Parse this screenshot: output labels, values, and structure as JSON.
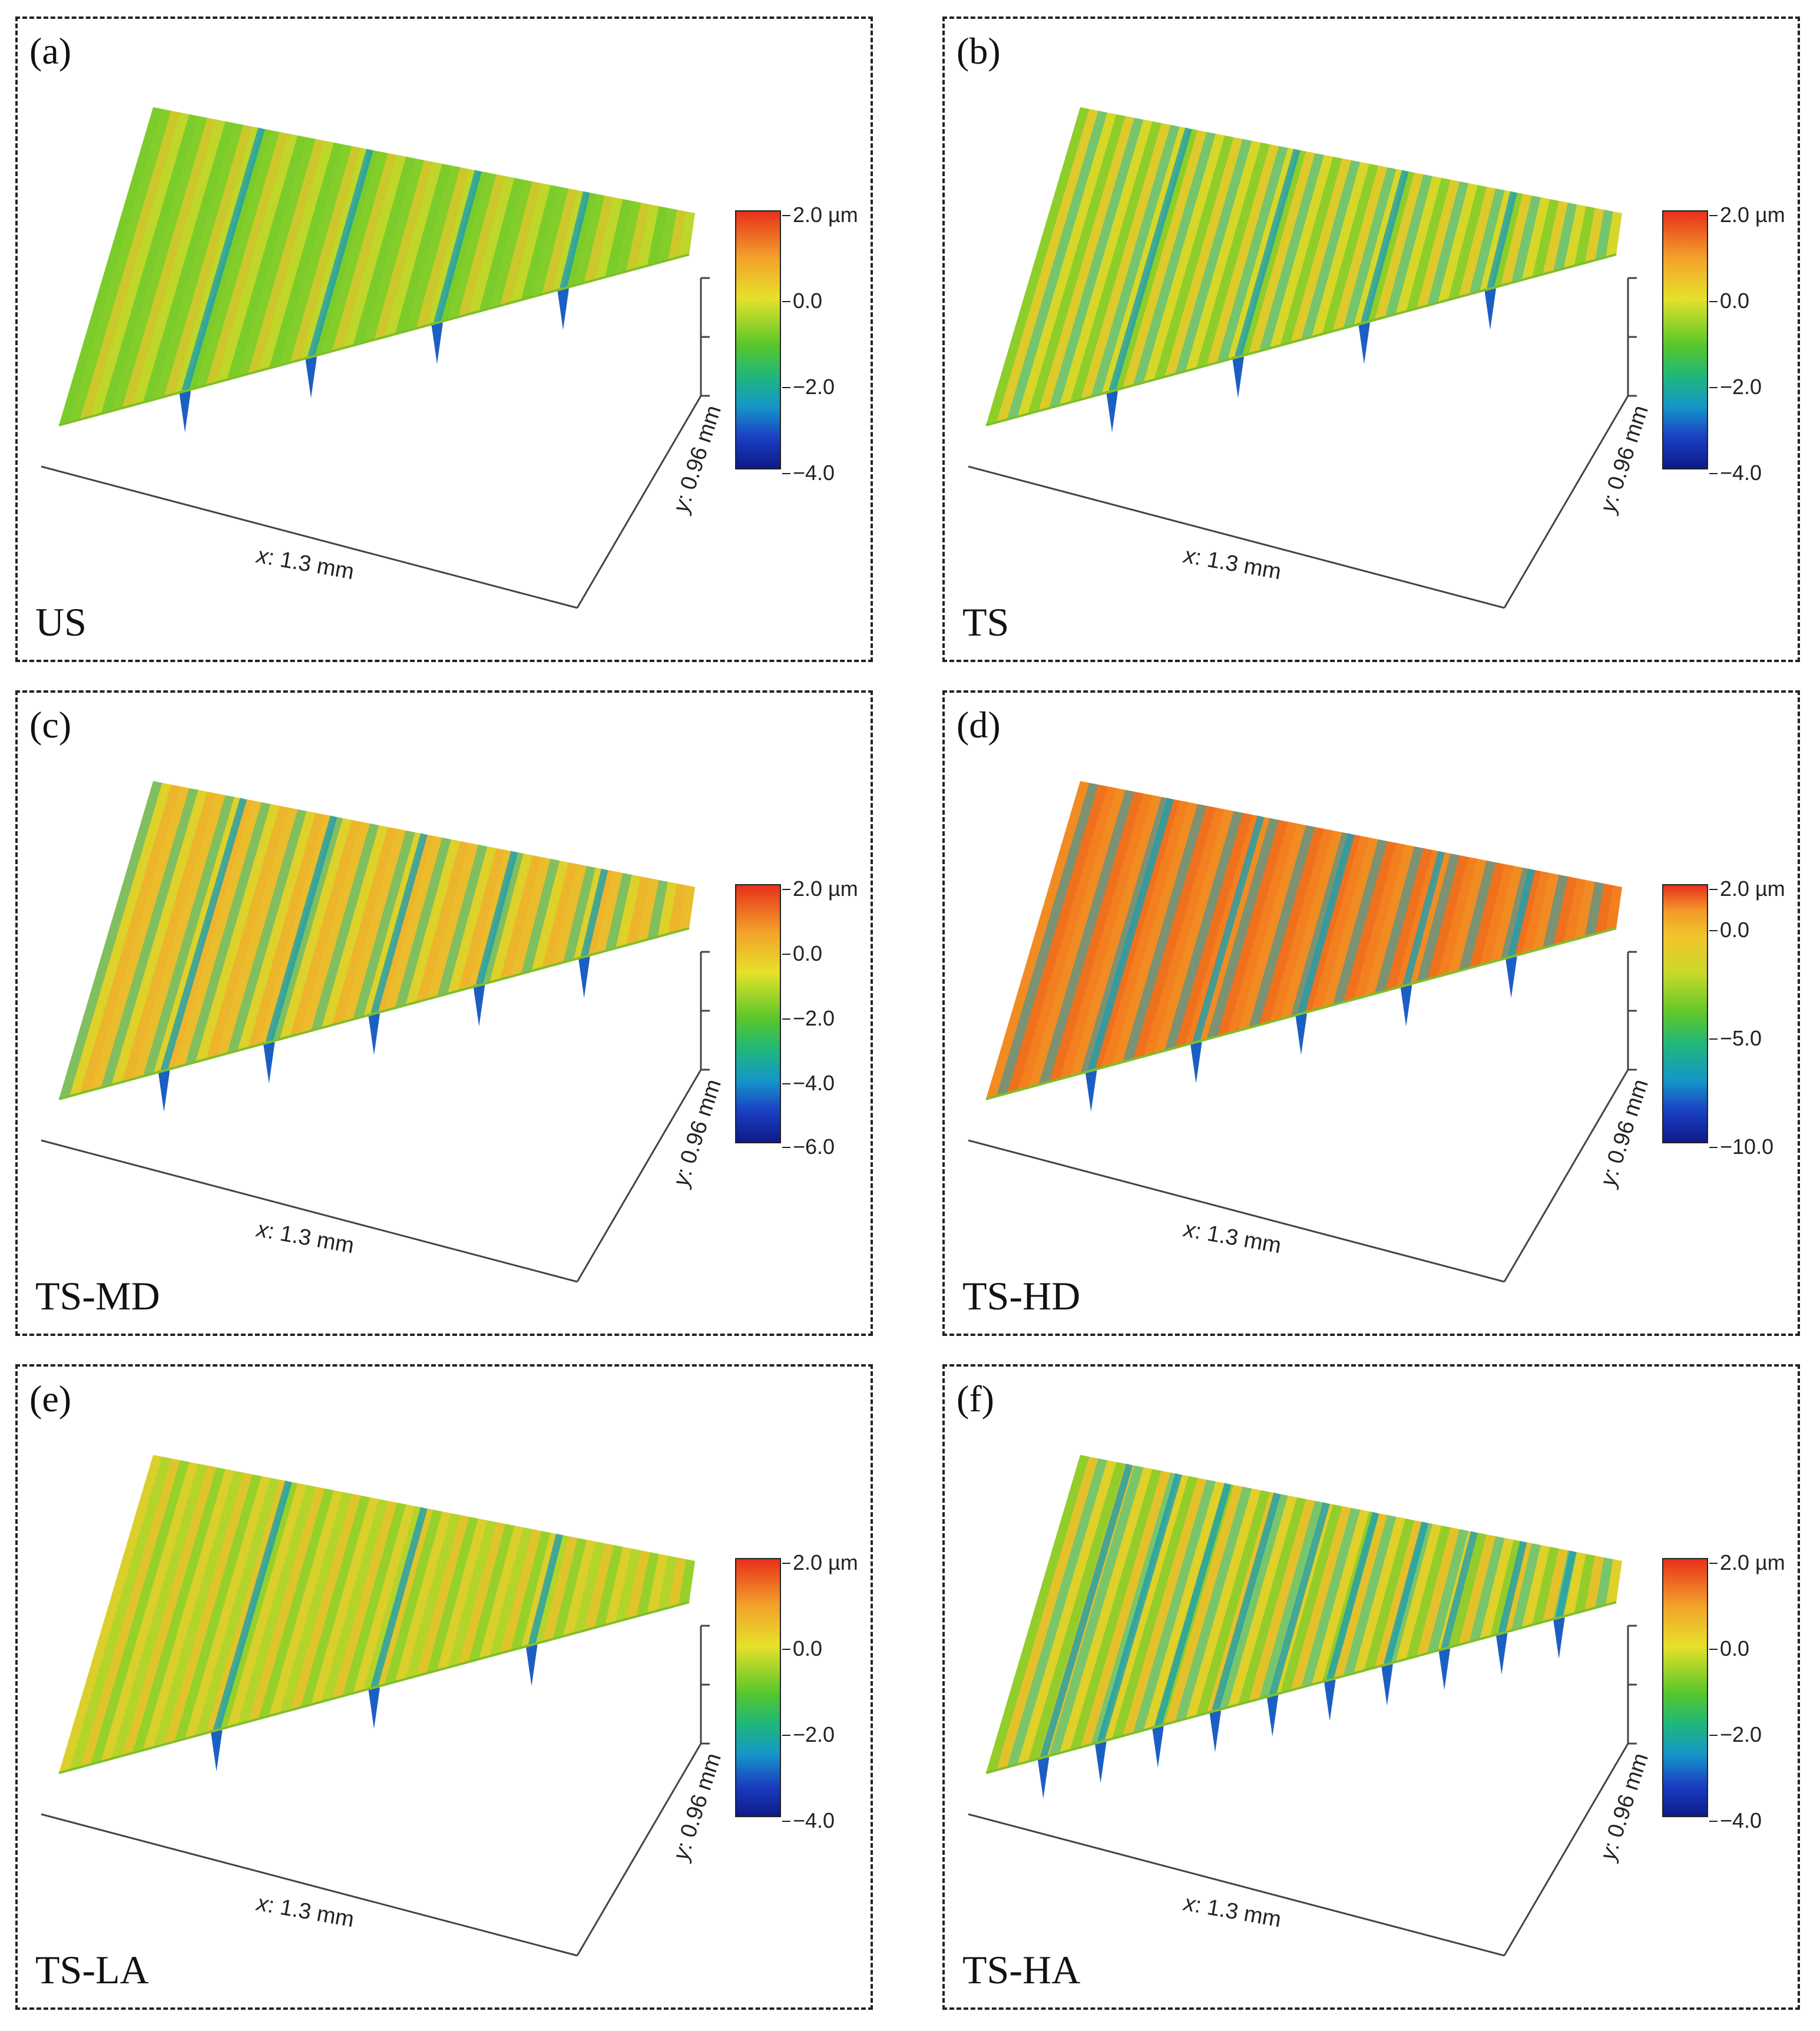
{
  "figure": {
    "panels": [
      {
        "id": "a",
        "label": "(a)",
        "sample": "US",
        "xlabel_axis": "x",
        "xlabel_value": ": 1.3 mm",
        "ylabel_axis": "y",
        "ylabel_value": ": 0.96 mm",
        "colorbar": [
          "2.0 µm",
          "0.0",
          "−2.0",
          "−4.0"
        ],
        "base_color": "#9fd12b",
        "stripe_colors": [
          "#5cc82c",
          "#d9dc2a",
          "#f0c12b",
          "#6ccc2b"
        ]
      },
      {
        "id": "b",
        "label": "(b)",
        "sample": "TS",
        "xlabel_axis": "x",
        "xlabel_value": ": 1.3 mm",
        "ylabel_axis": "y",
        "ylabel_value": ": 0.96 mm",
        "colorbar": [
          "2.0 µm",
          "0.0",
          "−2.0",
          "−4.0"
        ],
        "base_color": "#c8d82a",
        "stripe_colors": [
          "#f0c02b",
          "#5cc72c",
          "#e3d72a",
          "#2fb6a5"
        ]
      },
      {
        "id": "c",
        "label": "(c)",
        "sample": "TS-MD",
        "xlabel_axis": "x",
        "xlabel_value": ": 1.3 mm",
        "ylabel_axis": "y",
        "ylabel_value": ": 0.96 mm",
        "colorbar": [
          "2.0 µm",
          "0.0",
          "−2.0",
          "−4.0",
          "−6.0"
        ],
        "base_color": "#e7c52c",
        "stripe_colors": [
          "#f2a72b",
          "#d6da2a",
          "#2bb98a",
          "#efb52b"
        ]
      },
      {
        "id": "d",
        "label": "(d)",
        "sample": "TS-HD",
        "xlabel_axis": "x",
        "xlabel_value": ": 1.3 mm",
        "ylabel_axis": "y",
        "ylabel_value": ": 0.96 mm",
        "colorbar": [
          "2.0 µm",
          "0.0",
          "−5.0",
          "−10.0"
        ],
        "base_color": "#f07a1f",
        "stripe_colors": [
          "#f5841f",
          "#ee6a1d",
          "#1ba6b8",
          "#f39a24"
        ]
      },
      {
        "id": "e",
        "label": "(e)",
        "sample": "TS-LA",
        "xlabel_axis": "x",
        "xlabel_value": ": 1.3 mm",
        "ylabel_axis": "y",
        "ylabel_value": ": 0.96 mm",
        "colorbar": [
          "2.0 µm",
          "0.0",
          "−2.0",
          "−4.0"
        ],
        "base_color": "#c9d82a",
        "stripe_colors": [
          "#e9c92b",
          "#6ccc2b",
          "#f0b52b",
          "#9fd12b"
        ]
      },
      {
        "id": "f",
        "label": "(f)",
        "sample": "TS-HA",
        "xlabel_axis": "x",
        "xlabel_value": ": 1.3 mm",
        "ylabel_axis": "y",
        "ylabel_value": ": 0.96 mm",
        "colorbar": [
          "2.0 µm",
          "0.0",
          "−2.0",
          "−4.0"
        ],
        "base_color": "#d6d62a",
        "stripe_colors": [
          "#f0b02b",
          "#5cc72c",
          "#e8cc2a",
          "#2db8a0"
        ]
      }
    ]
  }
}
